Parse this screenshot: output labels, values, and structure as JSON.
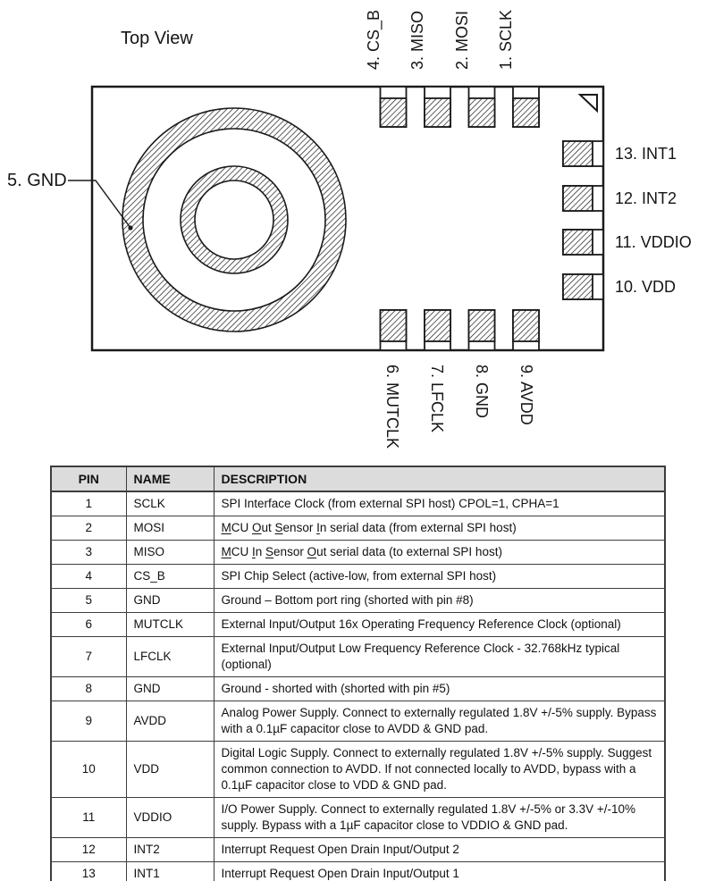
{
  "diagram": {
    "title": "Top View",
    "left_pin": "5. GND",
    "top_pins": [
      "4. CS_B",
      "3. MISO",
      "2. MOSI",
      "1. SCLK"
    ],
    "right_pins": [
      "13. INT1",
      "12. INT2",
      "11. VDDIO",
      "10. VDD"
    ],
    "bottom_pins": [
      "6. MUTCLK",
      "7. LFCLK",
      "8. GND",
      "9. AVDD"
    ],
    "ink_color": "#1a1a1a"
  },
  "table": {
    "headers": [
      "PIN",
      "NAME",
      "DESCRIPTION"
    ],
    "rows": [
      {
        "pin": "1",
        "name": "SCLK",
        "desc": "SPI Interface Clock (from external SPI host) CPOL=1, CPHA=1"
      },
      {
        "pin": "2",
        "name": "MOSI",
        "desc_rich": [
          {
            "t": "M",
            "u": true
          },
          {
            "t": "CU "
          },
          {
            "t": "O",
            "u": true
          },
          {
            "t": "ut "
          },
          {
            "t": "S",
            "u": true
          },
          {
            "t": "ensor "
          },
          {
            "t": "I",
            "u": true
          },
          {
            "t": "n serial data (from external SPI host)"
          }
        ]
      },
      {
        "pin": "3",
        "name": "MISO",
        "desc_rich": [
          {
            "t": "M",
            "u": true
          },
          {
            "t": "CU "
          },
          {
            "t": "I",
            "u": true
          },
          {
            "t": "n "
          },
          {
            "t": "S",
            "u": true
          },
          {
            "t": "ensor "
          },
          {
            "t": "O",
            "u": true
          },
          {
            "t": "ut serial data (to external SPI host)"
          }
        ]
      },
      {
        "pin": "4",
        "name": "CS_B",
        "desc": "SPI Chip Select (active-low, from external SPI host)"
      },
      {
        "pin": "5",
        "name": "GND",
        "desc": "Ground – Bottom port ring (shorted with pin #8)"
      },
      {
        "pin": "6",
        "name": "MUTCLK",
        "desc": "External Input/Output 16x Operating Frequency Reference Clock (optional)"
      },
      {
        "pin": "7",
        "name": "LFCLK",
        "desc": "External Input/Output Low Frequency Reference Clock - 32.768kHz typical (optional)"
      },
      {
        "pin": "8",
        "name": "GND",
        "desc": "Ground - shorted with (shorted with pin #5)"
      },
      {
        "pin": "9",
        "name": "AVDD",
        "desc": "Analog Power Supply. Connect to externally regulated 1.8V +/-5% supply. Bypass with a 0.1µF capacitor close to AVDD & GND pad."
      },
      {
        "pin": "10",
        "name": "VDD",
        "desc": "Digital Logic Supply. Connect to externally regulated 1.8V +/-5% supply. Suggest common connection to AVDD. If not connected locally to AVDD, bypass with a 0.1µF capacitor close to VDD & GND pad."
      },
      {
        "pin": "11",
        "name": "VDDIO",
        "desc": "I/O Power Supply. Connect to externally regulated 1.8V +/-5% or 3.3V +/-10% supply. Bypass with a 1µF capacitor close to VDDIO & GND pad."
      },
      {
        "pin": "12",
        "name": "INT2",
        "desc": "Interrupt Request Open Drain Input/Output 2"
      },
      {
        "pin": "13",
        "name": "INT1",
        "desc": "Interrupt Request Open Drain Input/Output 1"
      }
    ]
  }
}
